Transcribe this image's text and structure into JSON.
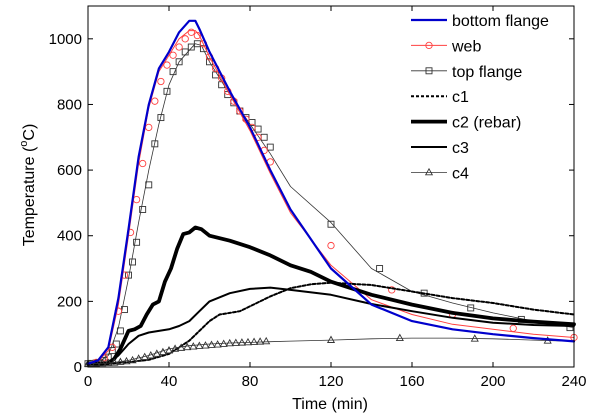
{
  "chart_data": {
    "type": "line",
    "xlabel": "Time (min)",
    "ylabel_main": "Temperature (",
    "ylabel_sup": "o",
    "ylabel_end": "C)",
    "xlim": [
      0,
      240
    ],
    "ylim": [
      0,
      1100
    ],
    "xticks": [
      0,
      40,
      80,
      120,
      160,
      200,
      240
    ],
    "yticks": [
      0,
      200,
      400,
      600,
      800,
      1000
    ],
    "grid": false,
    "legend_position": "top-right",
    "series": [
      {
        "name": "bottom flange",
        "color": "#0000cc",
        "width": 2.2,
        "dash": "",
        "marker": "none",
        "x": [
          0,
          5,
          10,
          15,
          20,
          25,
          30,
          35,
          40,
          45,
          50,
          53,
          55,
          60,
          70,
          80,
          90,
          100,
          120,
          140,
          160,
          180,
          200,
          220,
          240
        ],
        "y": [
          10,
          20,
          60,
          210,
          420,
          640,
          800,
          910,
          960,
          1020,
          1055,
          1055,
          1030,
          960,
          840,
          730,
          600,
          480,
          300,
          190,
          140,
          115,
          100,
          88,
          78
        ],
        "marker_x": [],
        "marker_y": []
      },
      {
        "name": "web",
        "color": "#ff4040",
        "width": 1.0,
        "dash": "",
        "marker": "circle",
        "x": [
          0,
          5,
          10,
          15,
          20,
          25,
          30,
          35,
          40,
          45,
          50,
          53,
          55,
          60,
          70,
          80,
          90,
          100,
          120,
          140,
          160,
          180,
          200,
          220,
          240
        ],
        "y": [
          10,
          18,
          50,
          190,
          400,
          620,
          790,
          900,
          950,
          1000,
          1025,
          1025,
          1010,
          945,
          830,
          720,
          590,
          470,
          310,
          205,
          160,
          130,
          115,
          100,
          90
        ],
        "marker_x": [
          4,
          8,
          12,
          15,
          18,
          21,
          24,
          27,
          30,
          33,
          36,
          39,
          42,
          45,
          48,
          51,
          54,
          57,
          60,
          63,
          66,
          69,
          72,
          75,
          78,
          81,
          84,
          87,
          90,
          120,
          150,
          180,
          210,
          240
        ],
        "marker_y": [
          14,
          28,
          60,
          170,
          280,
          410,
          510,
          620,
          730,
          810,
          870,
          920,
          950,
          975,
          1000,
          1020,
          1010,
          985,
          945,
          910,
          880,
          840,
          810,
          780,
          755,
          730,
          700,
          660,
          625,
          370,
          235,
          160,
          118,
          90
        ]
      },
      {
        "name": "top flange",
        "color": "#333333",
        "width": 0.8,
        "dash": "",
        "marker": "square",
        "x": [
          0,
          5,
          10,
          15,
          20,
          25,
          30,
          35,
          40,
          45,
          50,
          53,
          56,
          60,
          70,
          80,
          90,
          100,
          120,
          140,
          160,
          180,
          200,
          220,
          240
        ],
        "y": [
          10,
          15,
          35,
          120,
          270,
          440,
          600,
          740,
          860,
          930,
          965,
          985,
          980,
          930,
          830,
          740,
          650,
          550,
          440,
          300,
          230,
          195,
          165,
          140,
          120
        ],
        "marker_x": [
          0,
          2,
          4,
          6,
          8,
          10,
          12,
          14,
          16,
          18,
          20,
          22,
          24,
          27,
          30,
          33,
          36,
          39,
          42,
          45,
          48,
          51,
          54,
          57,
          60,
          63,
          66,
          69,
          72,
          75,
          78,
          81,
          84,
          87,
          90,
          120,
          144,
          166,
          189,
          214,
          238
        ],
        "marker_y": [
          10,
          11,
          12,
          14,
          20,
          30,
          50,
          70,
          110,
          175,
          280,
          320,
          380,
          480,
          555,
          680,
          760,
          840,
          900,
          930,
          960,
          975,
          985,
          970,
          930,
          890,
          860,
          830,
          805,
          780,
          760,
          745,
          725,
          700,
          670,
          435,
          300,
          225,
          180,
          145,
          120
        ]
      },
      {
        "name": "c1",
        "color": "#000000",
        "width": 2.0,
        "dash": "3,2",
        "marker": "none",
        "x": [
          0,
          10,
          20,
          30,
          40,
          50,
          55,
          60,
          65,
          70,
          75,
          80,
          90,
          100,
          110,
          120,
          140,
          160,
          180,
          200,
          220,
          240
        ],
        "y": [
          10,
          10,
          15,
          22,
          40,
          80,
          110,
          140,
          160,
          165,
          170,
          185,
          215,
          240,
          252,
          257,
          250,
          230,
          210,
          195,
          175,
          160
        ],
        "marker_x": [],
        "marker_y": []
      },
      {
        "name": "c2 (rebar)",
        "color": "#000000",
        "width": 3.8,
        "dash": "",
        "marker": "none",
        "x": [
          0,
          5,
          10,
          13,
          16,
          20,
          23,
          26,
          29,
          32,
          35,
          38,
          41,
          44,
          47,
          50,
          53,
          56,
          60,
          70,
          80,
          90,
          100,
          110,
          120,
          140,
          160,
          180,
          200,
          220,
          240
        ],
        "y": [
          10,
          10,
          12,
          25,
          55,
          110,
          115,
          125,
          160,
          190,
          200,
          260,
          300,
          360,
          405,
          410,
          425,
          420,
          400,
          385,
          365,
          340,
          310,
          290,
          260,
          220,
          190,
          165,
          148,
          138,
          130
        ],
        "marker_x": [],
        "marker_y": []
      },
      {
        "name": "c3",
        "color": "#000000",
        "width": 2.0,
        "dash": "",
        "marker": "none",
        "x": [
          0,
          10,
          15,
          20,
          25,
          30,
          35,
          40,
          45,
          50,
          55,
          60,
          70,
          80,
          90,
          100,
          120,
          140,
          160,
          180,
          200,
          220,
          240
        ],
        "y": [
          10,
          10,
          35,
          70,
          95,
          105,
          110,
          115,
          125,
          140,
          170,
          200,
          225,
          238,
          242,
          235,
          220,
          192,
          170,
          150,
          135,
          128,
          125
        ],
        "marker_x": [],
        "marker_y": []
      },
      {
        "name": "c4",
        "color": "#333333",
        "width": 0.8,
        "dash": "",
        "marker": "triangle",
        "x": [
          0,
          10,
          20,
          30,
          40,
          50,
          60,
          70,
          80,
          90,
          100,
          120,
          140,
          160,
          180,
          200,
          220,
          240
        ],
        "y": [
          10,
          12,
          20,
          35,
          55,
          65,
          70,
          73,
          75,
          77,
          79,
          82,
          86,
          88,
          88,
          86,
          82,
          78
        ],
        "marker_x": [
          0,
          4,
          7,
          10,
          13,
          16,
          19,
          22,
          25,
          28,
          31,
          34,
          37,
          40,
          43,
          46,
          49,
          52,
          55,
          58,
          61,
          64,
          67,
          70,
          73,
          76,
          79,
          82,
          85,
          88,
          120,
          154,
          191,
          227
        ],
        "marker_y": [
          10,
          11,
          11,
          12,
          13,
          15,
          17,
          20,
          25,
          30,
          35,
          40,
          45,
          50,
          55,
          58,
          60,
          62,
          64,
          65,
          67,
          68,
          70,
          72,
          73,
          74,
          75,
          76,
          77,
          78,
          82,
          88,
          86,
          80
        ]
      }
    ]
  }
}
